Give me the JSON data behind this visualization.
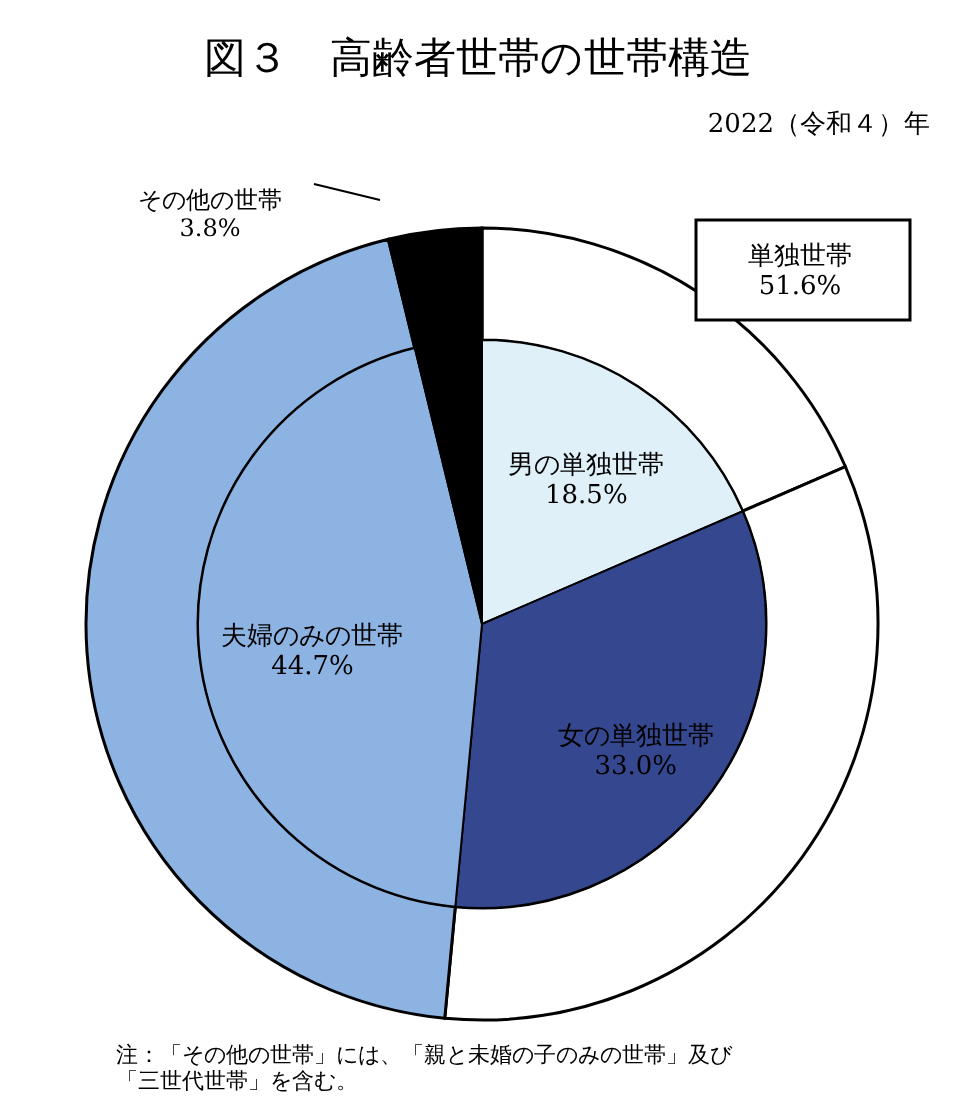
{
  "chart_data": {
    "type": "donut",
    "title": "図３　高齢者世帯の世帯構造",
    "subtitle": "2022（令和４）年",
    "categories": [
      "男の単独世帯",
      "女の単独世帯",
      "夫婦のみの世帯",
      "その他の世帯"
    ],
    "series": [
      {
        "values": [
          18.5,
          33.0,
          44.7,
          3.8
        ],
        "colors": [
          "#ffffff",
          "#ffffff",
          "#8db3e2",
          "#000000"
        ]
      },
      {
        "type": "pie",
        "values": [
          18.5,
          33.0,
          44.7,
          3.8
        ],
        "colors": [
          "#dff0f8",
          "#34478f",
          "#8db3e2",
          "#000000"
        ],
        "value_labels": [
          "18.5%",
          "33.0%",
          "44.7%",
          "3.8%"
        ]
      }
    ],
    "annotations": [
      "単独世帯\n51.6%",
      "注：「その他の世帯」には、「親と未婚の子のみの世帯」及び「三世代世帯」を含む。"
    ]
  }
}
